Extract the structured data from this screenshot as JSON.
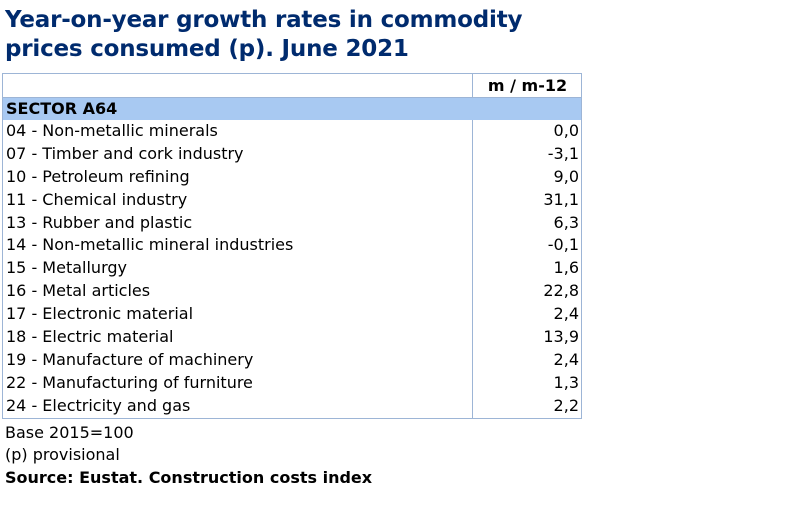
{
  "title": "Year-on-year growth rates in commodity prices consumed (p). June 2021",
  "table": {
    "column_header": "m / m-12",
    "sector_label": "SECTOR A64",
    "rows": [
      {
        "label": "04 - Non-metallic minerals",
        "value": "0,0"
      },
      {
        "label": "07 - Timber and cork industry",
        "value": "-3,1"
      },
      {
        "label": "10 - Petroleum refining",
        "value": "9,0"
      },
      {
        "label": "11 - Chemical industry",
        "value": "31,1"
      },
      {
        "label": "13 - Rubber and plastic",
        "value": "6,3"
      },
      {
        "label": "14 - Non-metallic mineral industries",
        "value": "-0,1"
      },
      {
        "label": "15 - Metallurgy",
        "value": "1,6"
      },
      {
        "label": "16 - Metal articles",
        "value": "22,8"
      },
      {
        "label": "17 - Electronic material",
        "value": "2,4"
      },
      {
        "label": "18 - Electric material",
        "value": "13,9"
      },
      {
        "label": "19 - Manufacture of machinery",
        "value": "2,4"
      },
      {
        "label": "22 - Manufacturing of furniture",
        "value": "1,3"
      },
      {
        "label": "24 - Electricity and gas",
        "value": "2,2"
      }
    ]
  },
  "footnotes": {
    "base": "Base 2015=100",
    "provisional": "(p) provisional",
    "source": "Source: Eustat. Construction costs index"
  }
}
